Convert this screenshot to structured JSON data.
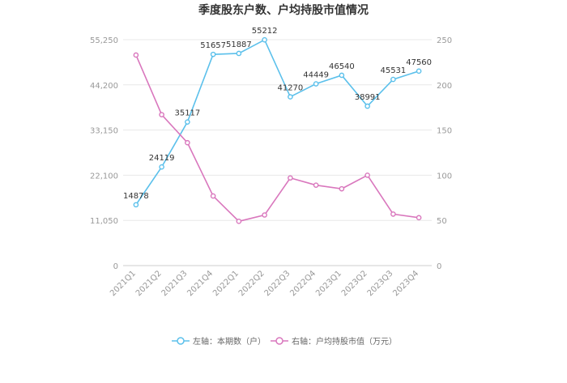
{
  "chart_data": {
    "type": "line",
    "title": "季度股东户数、户均持股市值情况",
    "categories": [
      "2021Q1",
      "2021Q2",
      "2021Q3",
      "2021Q4",
      "2022Q1",
      "2022Q2",
      "2022Q3",
      "2022Q4",
      "2023Q1",
      "2023Q2",
      "2023Q3",
      "2023Q4"
    ],
    "y_left": {
      "ticks": [
        "0",
        "11,050",
        "22,100",
        "33,150",
        "44,200",
        "55,250"
      ],
      "ylim": [
        0,
        55250
      ]
    },
    "y_right": {
      "ticks": [
        "0",
        "50",
        "100",
        "150",
        "200",
        "250"
      ],
      "ylim": [
        0,
        250
      ]
    },
    "grid": true,
    "legend_position": "bottom",
    "series": [
      {
        "name": "左轴：本期数（户）",
        "axis": "left",
        "color": "#5bc0eb",
        "values": [
          14878,
          24119,
          35117,
          51657,
          51887,
          55212,
          41270,
          44449,
          46540,
          38991,
          45531,
          47560
        ],
        "labels": [
          "14878",
          "24119",
          "35117",
          "51657",
          "51887",
          "55212",
          "41270",
          "44449",
          "46540",
          "38991",
          "45531",
          "47560"
        ]
      },
      {
        "name": "右轴：户均持股市值（万元）",
        "axis": "right",
        "color": "#d977bd",
        "values": [
          233,
          167,
          136,
          77,
          49,
          56,
          97,
          89,
          85,
          100,
          57,
          53
        ]
      }
    ]
  }
}
